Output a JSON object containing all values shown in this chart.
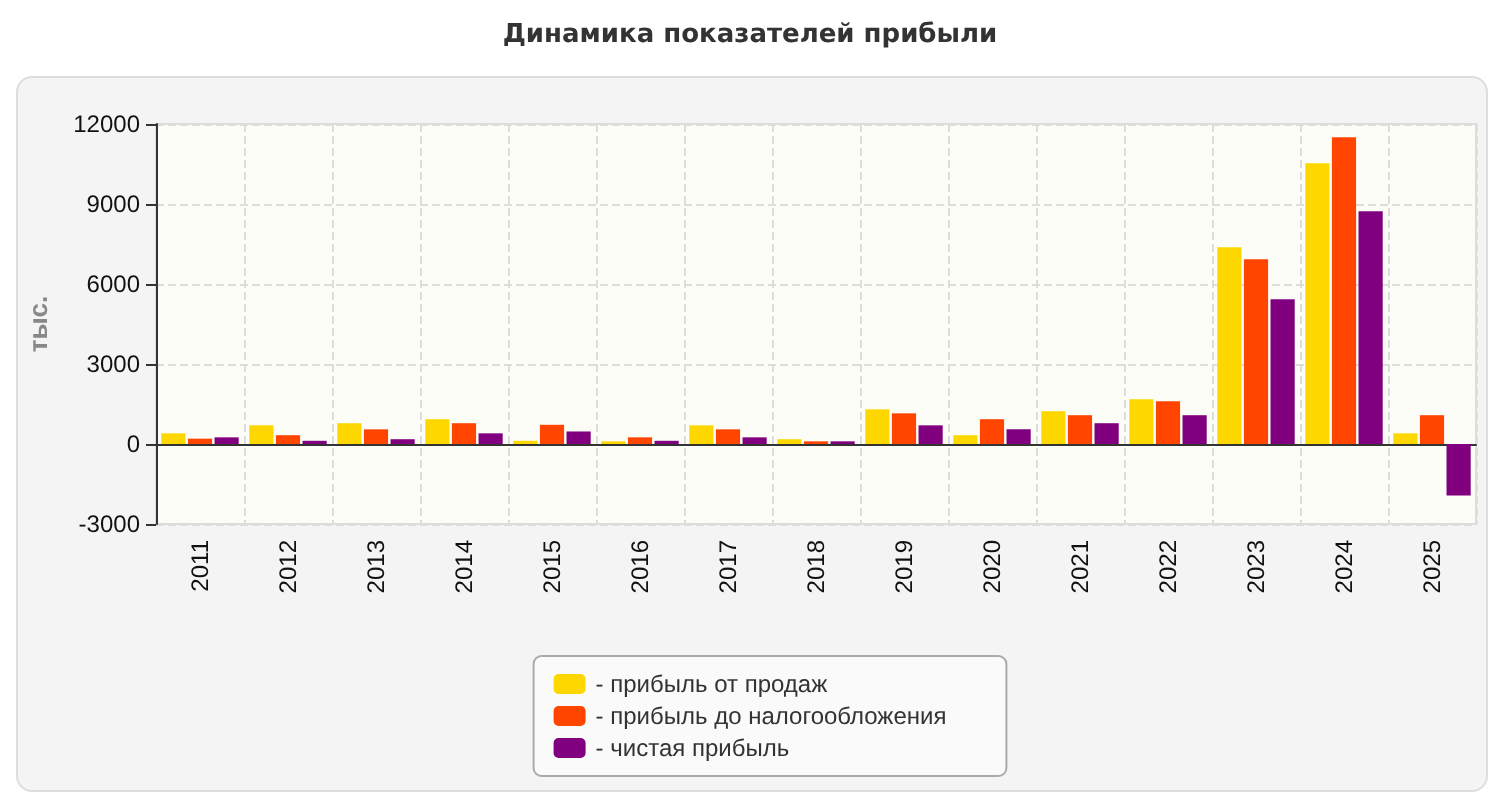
{
  "chart_data": {
    "type": "bar",
    "title": "Динамика показателей прибыли",
    "ylabel": "тыс.",
    "categories": [
      "2011",
      "2012",
      "2013",
      "2014",
      "2015",
      "2016",
      "2017",
      "2018",
      "2019",
      "2020",
      "2021",
      "2022",
      "2023",
      "2024",
      "2025"
    ],
    "series": [
      {
        "name": "- прибыль от продаж",
        "color": "#ffd700",
        "values": [
          400,
          700,
          780,
          930,
          120,
          100,
          700,
          180,
          1300,
          330,
          1230,
          1680,
          7380,
          10530,
          400
        ]
      },
      {
        "name": "- прибыль до налогообложения",
        "color": "#ff4500",
        "values": [
          200,
          330,
          550,
          780,
          720,
          250,
          550,
          100,
          1150,
          930,
          1080,
          1600,
          6930,
          11500,
          1080
        ]
      },
      {
        "name": "- чистая прибыль",
        "color": "#800080",
        "values": [
          250,
          120,
          180,
          400,
          470,
          120,
          250,
          100,
          700,
          550,
          780,
          1080,
          5430,
          8730,
          -1930
        ]
      }
    ],
    "ylim": [
      -3000,
      12000
    ],
    "yticks": [
      -3000,
      0,
      3000,
      6000,
      9000,
      12000
    ],
    "grid": true,
    "legend": "bottom"
  }
}
